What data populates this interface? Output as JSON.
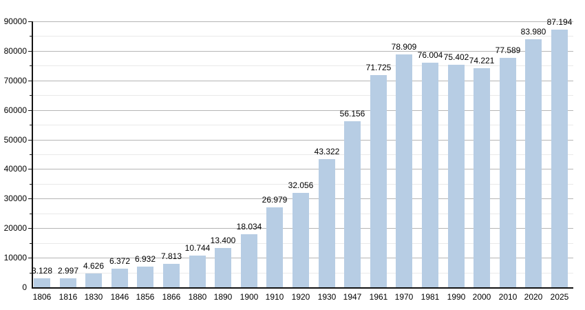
{
  "chart_data": {
    "type": "bar",
    "title": "",
    "xlabel": "",
    "ylabel": "",
    "categories": [
      "1806",
      "1816",
      "1830",
      "1846",
      "1856",
      "1866",
      "1880",
      "1890",
      "1900",
      "1910",
      "1920",
      "1930",
      "1947",
      "1961",
      "1970",
      "1981",
      "1990",
      "2000",
      "2010",
      "2020",
      "2025"
    ],
    "values": [
      3128,
      2997,
      4626,
      6372,
      6932,
      7813,
      10744,
      13400,
      18034,
      26979,
      32056,
      43322,
      56156,
      71725,
      78909,
      76004,
      75402,
      74221,
      77589,
      83980,
      87194
    ],
    "value_labels": [
      "3.128",
      "2.997",
      "4.626",
      "6.372",
      "6.932",
      "7.813",
      "10.744",
      "13.400",
      "18.034",
      "26.979",
      "32.056",
      "43.322",
      "56.156",
      "71.725",
      "78.909",
      "76.004",
      "75.402",
      "74.221",
      "77.589",
      "83.980",
      "87.194"
    ],
    "ylim": [
      0,
      90000
    ],
    "y_major_step": 10000,
    "y_minor_step": 5000,
    "y_tick_labels": [
      "0",
      "10000",
      "20000",
      "30000",
      "40000",
      "50000",
      "60000",
      "70000",
      "80000",
      "90000"
    ],
    "grid": true,
    "legend": "none",
    "colors": {
      "bar": "#b7cde4",
      "grid_major": "#b5b5b5",
      "grid_minor": "#e9e9e9",
      "axis": "#111111",
      "text": "#000000",
      "background": "#ffffff"
    }
  }
}
